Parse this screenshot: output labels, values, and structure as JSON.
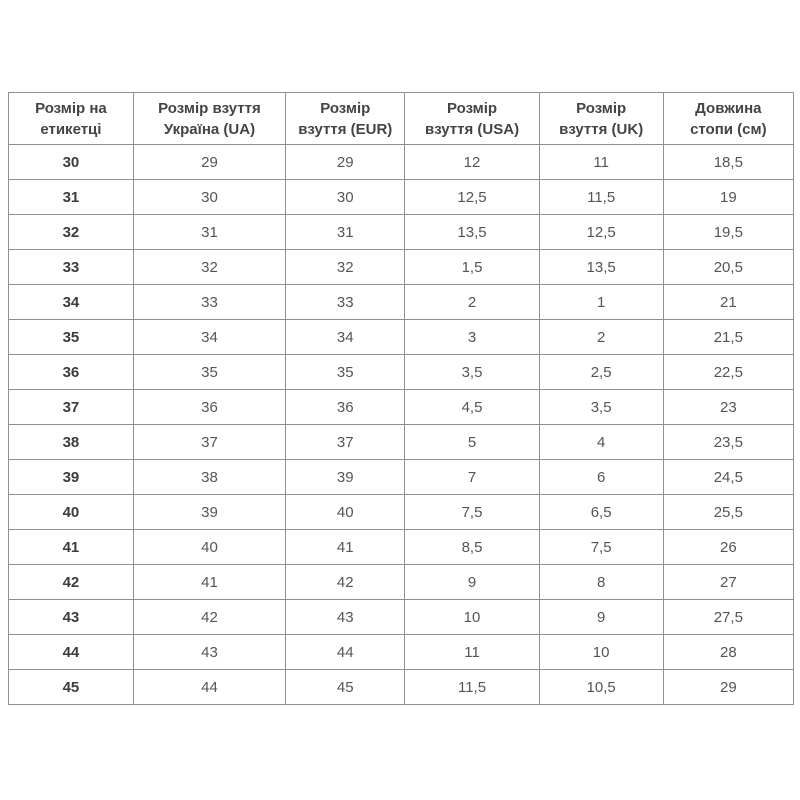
{
  "colors": {
    "background": "#ffffff",
    "border": "#8f8f8f",
    "header_text": "#444444",
    "cell_text": "#555555",
    "label_column_text": "#3c3c3c"
  },
  "chart_data": {
    "type": "table",
    "columns": [
      "Розмір на\nетикетці",
      "Розмір взуття\nУкраїна (UA)",
      "Розмір\nвзуття (EUR)",
      "Розмір\nвзуття (USA)",
      "Розмір\nвзуття (UK)",
      "Довжина\nстопи (см)"
    ],
    "rows": [
      [
        "30",
        "29",
        "29",
        "12",
        "11",
        "18,5"
      ],
      [
        "31",
        "30",
        "30",
        "12,5",
        "11,5",
        "19"
      ],
      [
        "32",
        "31",
        "31",
        "13,5",
        "12,5",
        "19,5"
      ],
      [
        "33",
        "32",
        "32",
        "1,5",
        "13,5",
        "20,5"
      ],
      [
        "34",
        "33",
        "33",
        "2",
        "1",
        "21"
      ],
      [
        "35",
        "34",
        "34",
        "3",
        "2",
        "21,5"
      ],
      [
        "36",
        "35",
        "35",
        "3,5",
        "2,5",
        "22,5"
      ],
      [
        "37",
        "36",
        "36",
        "4,5",
        "3,5",
        "23"
      ],
      [
        "38",
        "37",
        "37",
        "5",
        "4",
        "23,5"
      ],
      [
        "39",
        "38",
        "39",
        "7",
        "6",
        "24,5"
      ],
      [
        "40",
        "39",
        "40",
        "7,5",
        "6,5",
        "25,5"
      ],
      [
        "41",
        "40",
        "41",
        "8,5",
        "7,5",
        "26"
      ],
      [
        "42",
        "41",
        "42",
        "9",
        "8",
        "27"
      ],
      [
        "43",
        "42",
        "43",
        "10",
        "9",
        "27,5"
      ],
      [
        "44",
        "43",
        "44",
        "11",
        "10",
        "28"
      ],
      [
        "45",
        "44",
        "45",
        "11,5",
        "10,5",
        "29"
      ]
    ],
    "layout": {
      "grid": true,
      "column_width_percent": [
        15.9,
        19.4,
        15.2,
        17.1,
        15.8,
        16.6
      ]
    }
  }
}
